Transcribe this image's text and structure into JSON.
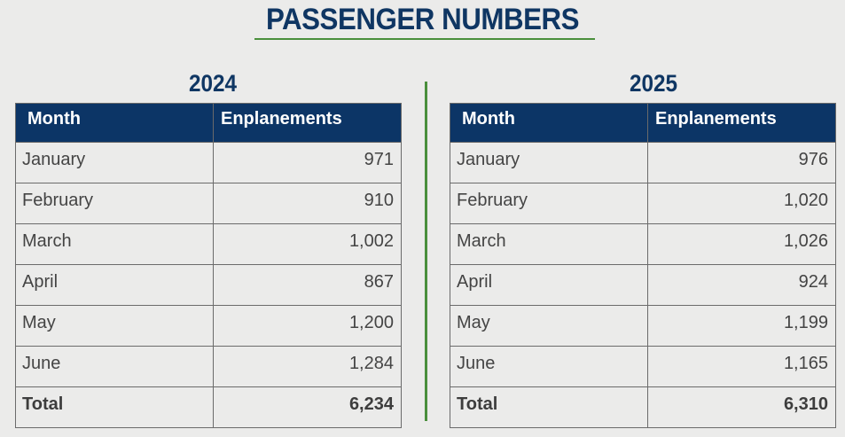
{
  "title": "PASSENGER NUMBERS",
  "colors": {
    "title": "#0f3663",
    "header_bg": "#0c3566",
    "header_text": "#ffffff",
    "accent_green": "#4a8f3c",
    "background": "#ebebea",
    "cell_text": "#444444"
  },
  "tables": [
    {
      "year": "2024",
      "headers": [
        "Month",
        "Enplanements"
      ],
      "rows": [
        {
          "month": "January",
          "value": "971"
        },
        {
          "month": "February",
          "value": "910"
        },
        {
          "month": "March",
          "value": "1,002"
        },
        {
          "month": "April",
          "value": "867"
        },
        {
          "month": "May",
          "value": "1,200"
        },
        {
          "month": "June",
          "value": "1,284"
        }
      ],
      "total": {
        "label": "Total",
        "value": "6,234"
      }
    },
    {
      "year": "2025",
      "headers": [
        "Month",
        "Enplanements"
      ],
      "rows": [
        {
          "month": "January",
          "value": "976"
        },
        {
          "month": "February",
          "value": "1,020"
        },
        {
          "month": "March",
          "value": "1,026"
        },
        {
          "month": "April",
          "value": "924"
        },
        {
          "month": "May",
          "value": "1,199"
        },
        {
          "month": "June",
          "value": "1,165"
        }
      ],
      "total": {
        "label": "Total",
        "value": "6,310"
      }
    }
  ]
}
